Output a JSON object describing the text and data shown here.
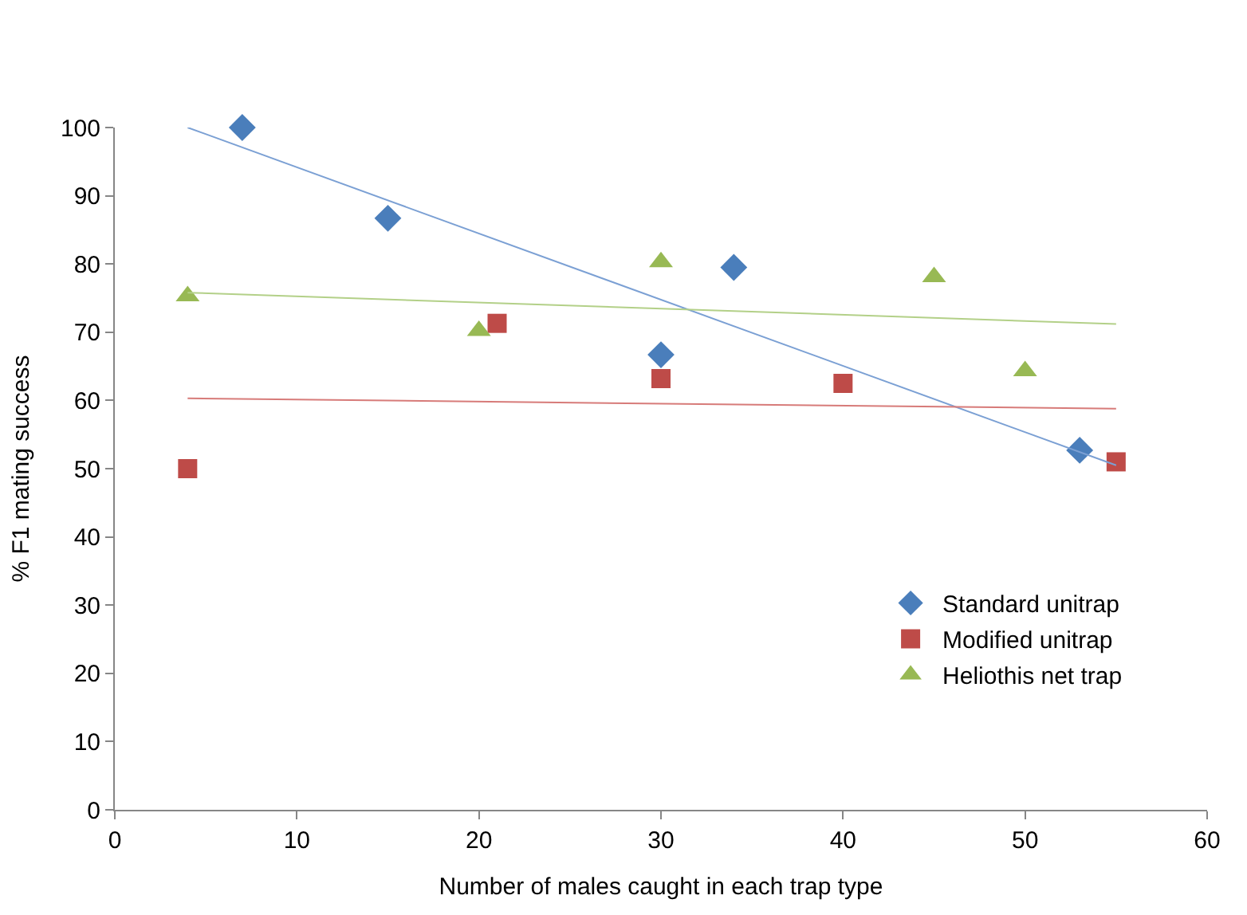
{
  "chart_data": {
    "type": "scatter",
    "xlabel": "Number of males caught in each trap type",
    "ylabel": "% F1 mating success",
    "xlim": [
      0,
      60
    ],
    "xticks": [
      0,
      10,
      20,
      30,
      40,
      50,
      60
    ],
    "ylim": [
      0,
      100
    ],
    "yticks": [
      0,
      10,
      20,
      30,
      40,
      50,
      60,
      70,
      80,
      90,
      100
    ],
    "legend": "right",
    "series": [
      {
        "name": "Standard unitrap",
        "color": "#4a7ebb",
        "marker": "diamond",
        "x": [
          7,
          15,
          30,
          34,
          53
        ],
        "values": [
          100,
          86.7,
          66.7,
          79.5,
          52.7
        ]
      },
      {
        "name": "Modified unitrap",
        "color": "#be4b48",
        "marker": "square",
        "x": [
          4,
          21,
          30,
          40,
          55
        ],
        "values": [
          50,
          71.3,
          63.2,
          62.5,
          51
        ]
      },
      {
        "name": "Heliothis net trap",
        "color": "#98b954",
        "marker": "triangle",
        "x": [
          4,
          20,
          30,
          45,
          50
        ],
        "values": [
          75.3,
          70.2,
          80.3,
          78.1,
          64.3
        ]
      },
      {
        "type": "line",
        "color": "#7ba0d4",
        "marker": "none",
        "x": [
          4,
          55
        ],
        "values": [
          100,
          50.5
        ]
      },
      {
        "type": "line",
        "color": "#d77b79",
        "marker": "none",
        "x": [
          4,
          55
        ],
        "values": [
          60.3,
          58.8
        ]
      },
      {
        "type": "line",
        "color": "#b3d088",
        "marker": "none",
        "x": [
          4,
          55
        ],
        "values": [
          75.8,
          71.2
        ]
      }
    ]
  }
}
